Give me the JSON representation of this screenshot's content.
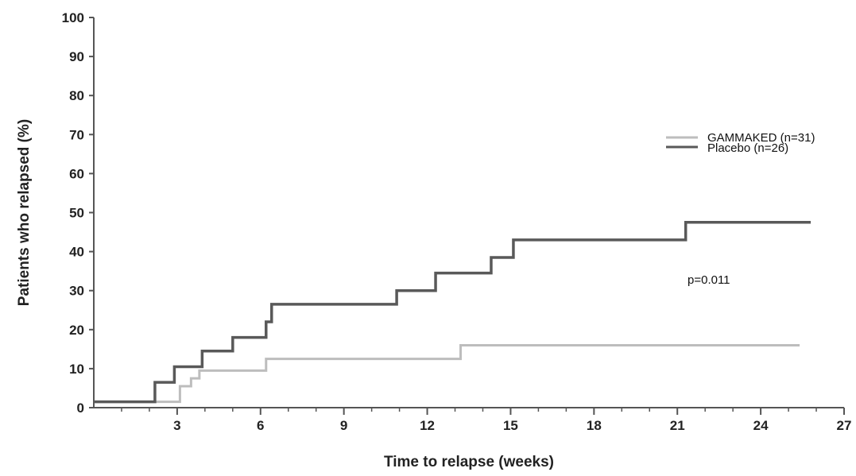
{
  "chart_data": {
    "type": "line",
    "step": true,
    "xlabel": "Time to relapse (weeks)",
    "ylabel": "Patients who relapsed (%)",
    "xlim": [
      0,
      27
    ],
    "ylim": [
      0,
      100
    ],
    "xticks": [
      3,
      6,
      9,
      12,
      15,
      18,
      21,
      24,
      27
    ],
    "yticks": [
      0,
      10,
      20,
      30,
      40,
      50,
      60,
      70,
      80,
      90,
      100
    ],
    "grid": false,
    "legend_position": "right",
    "annotation": "p=0.011",
    "series": [
      {
        "name": "GAMMAKED (n=31)",
        "color": "#bdbdbd",
        "x": [
          0,
          3.1,
          3.1,
          3.5,
          3.5,
          3.8,
          3.8,
          6.2,
          6.2,
          13.2,
          13.2,
          25.4
        ],
        "y": [
          1.5,
          1.5,
          5.5,
          5.5,
          7.5,
          7.5,
          9.5,
          9.5,
          12.5,
          12.5,
          16,
          16
        ]
      },
      {
        "name": "Placebo (n=26)",
        "color": "#595959",
        "x": [
          0,
          2.2,
          2.2,
          2.9,
          2.9,
          3.9,
          3.9,
          5.0,
          5.0,
          6.2,
          6.2,
          6.4,
          6.4,
          10.9,
          10.9,
          12.3,
          12.3,
          14.3,
          14.3,
          15.1,
          15.1,
          21.3,
          21.3,
          25.8
        ],
        "y": [
          1.5,
          1.5,
          6.5,
          6.5,
          10.5,
          10.5,
          14.5,
          14.5,
          18,
          18,
          22,
          22,
          26.5,
          26.5,
          30,
          30,
          34.5,
          34.5,
          38.5,
          38.5,
          43,
          43,
          47.5,
          47.5
        ]
      }
    ]
  }
}
